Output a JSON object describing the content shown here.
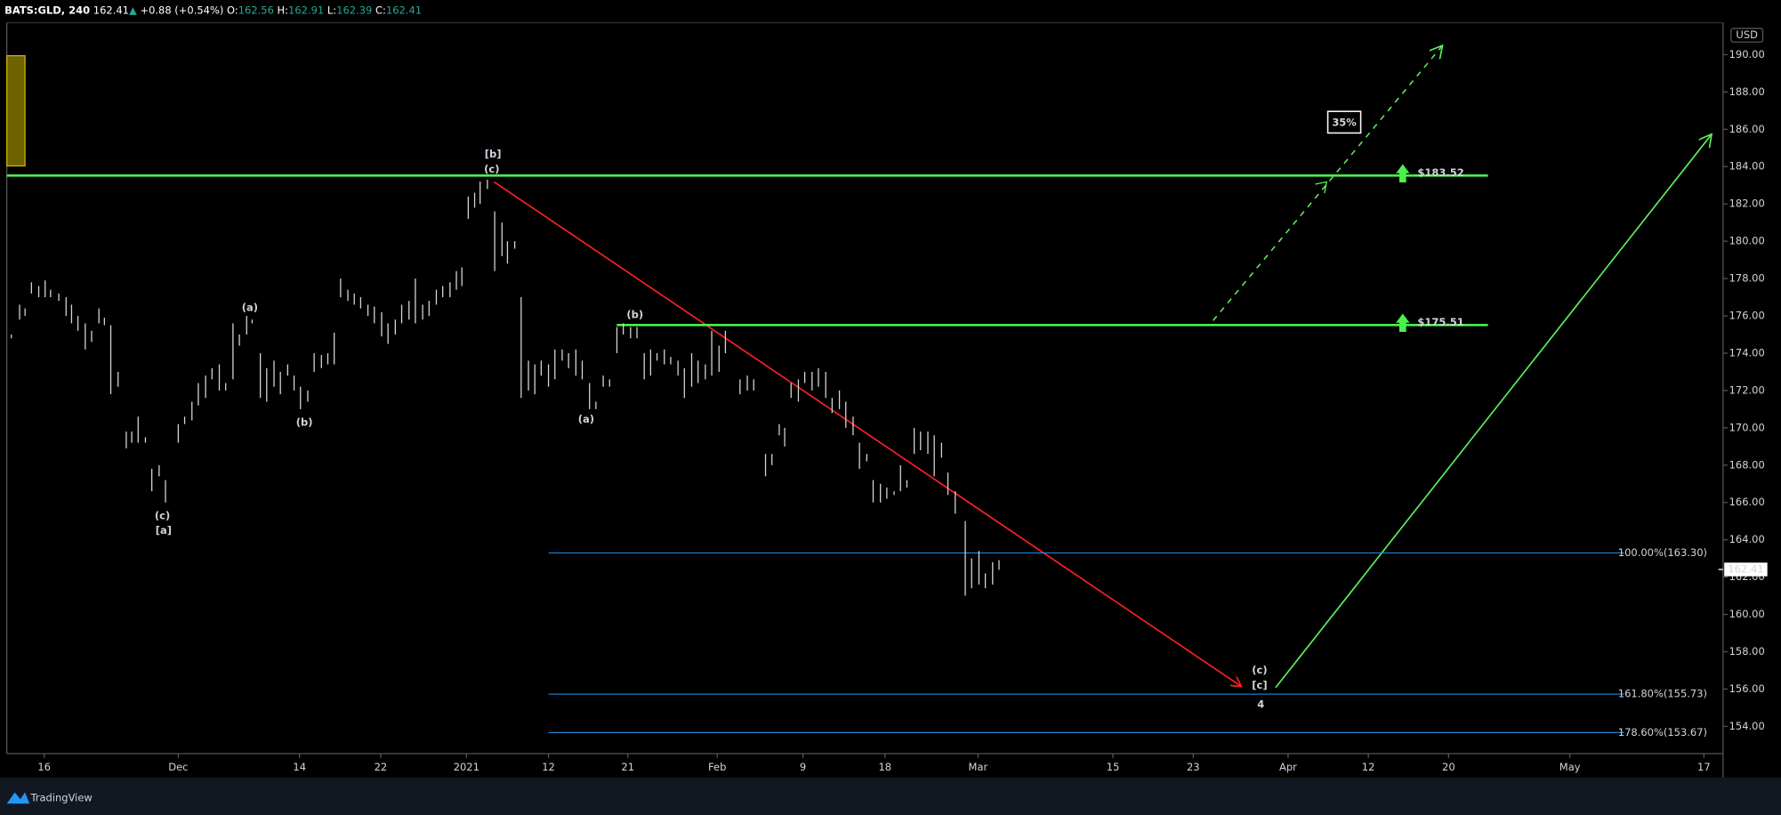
{
  "header": {
    "symbol": "BATS:GLD, 240",
    "price": "162.41",
    "arrow": "▲",
    "change": "+0.88 (+0.54%)",
    "ohlc": [
      {
        "label": "O:",
        "value": "162.56"
      },
      {
        "label": "H:",
        "value": "162.91"
      },
      {
        "label": "L:",
        "value": "162.39"
      },
      {
        "label": "C:",
        "value": "162.41"
      }
    ]
  },
  "footer": {
    "brand": "TradingView"
  },
  "chart_data": {
    "type": "ohlc",
    "currency": "USD",
    "last_price": 162.41,
    "xlim": [
      -4.1,
      184.1
    ],
    "ylim": [
      152.54,
      191.71
    ],
    "xticks": [
      {
        "value": 0,
        "label": "16"
      },
      {
        "value": 14.7,
        "label": "Dec"
      },
      {
        "value": 28,
        "label": "14"
      },
      {
        "value": 36.9,
        "label": "22"
      },
      {
        "value": 46.3,
        "label": "2021"
      },
      {
        "value": 55.3,
        "label": "12"
      },
      {
        "value": 64.0,
        "label": "21"
      },
      {
        "value": 73.8,
        "label": "Feb"
      },
      {
        "value": 83.2,
        "label": "9"
      },
      {
        "value": 92.2,
        "label": "18"
      },
      {
        "value": 102.4,
        "label": "Mar"
      },
      {
        "value": 117.2,
        "label": "15"
      },
      {
        "value": 126.0,
        "label": "23"
      },
      {
        "value": 136.4,
        "label": "Apr"
      },
      {
        "value": 145.2,
        "label": "12"
      },
      {
        "value": 154.0,
        "label": "20"
      },
      {
        "value": 167.3,
        "label": "May"
      },
      {
        "value": 182.0,
        "label": "17"
      }
    ],
    "yticks": [
      {
        "value": 154,
        "label": "154.00"
      },
      {
        "value": 156,
        "label": "156.00"
      },
      {
        "value": 158,
        "label": "158.00"
      },
      {
        "value": 160,
        "label": "160.00"
      },
      {
        "value": 162,
        "label": "162.00"
      },
      {
        "value": 164,
        "label": "164.00"
      },
      {
        "value": 166,
        "label": "166.00"
      },
      {
        "value": 168,
        "label": "168.00"
      },
      {
        "value": 170,
        "label": "170.00"
      },
      {
        "value": 172,
        "label": "172.00"
      },
      {
        "value": 174,
        "label": "174.00"
      },
      {
        "value": 176,
        "label": "176.00"
      },
      {
        "value": 178,
        "label": "178.00"
      },
      {
        "value": 180,
        "label": "180.00"
      },
      {
        "value": 182,
        "label": "182.00"
      },
      {
        "value": 184,
        "label": "184.00"
      },
      {
        "value": 186,
        "label": "186.00"
      },
      {
        "value": 188,
        "label": "188.00"
      },
      {
        "value": 190,
        "label": "190.00"
      }
    ],
    "bars": {
      "color": "#d6d6d6",
      "x": [
        -3.6,
        -2.7,
        -2.1,
        -1.4,
        -0.6,
        0.1,
        0.7,
        1.6,
        2.4,
        3.0,
        3.7,
        4.5,
        5.2,
        6.0,
        6.6,
        7.3,
        8.1,
        9.0,
        9.6,
        10.3,
        11.1,
        11.8,
        12.6,
        13.3,
        14.7,
        15.4,
        16.2,
        16.9,
        17.7,
        18.4,
        19.2,
        19.9,
        20.7,
        21.4,
        22.2,
        22.8,
        23.7,
        24.4,
        25.2,
        25.9,
        26.7,
        27.4,
        28.1,
        28.9,
        29.6,
        30.4,
        31.1,
        31.8,
        32.5,
        33.3,
        34.0,
        34.7,
        35.5,
        36.2,
        37.0,
        37.7,
        38.5,
        39.2,
        40.0,
        40.7,
        41.5,
        42.2,
        43.0,
        43.7,
        44.5,
        45.2,
        45.8,
        46.5,
        47.2,
        47.8,
        48.6,
        49.4,
        50.2,
        50.8,
        51.6,
        52.3,
        53.1,
        53.8,
        54.5,
        55.3,
        56.0,
        56.8,
        57.5,
        58.3,
        59.0,
        59.8,
        60.5,
        61.3,
        62.0,
        62.8,
        63.5,
        64.3,
        65.0,
        65.8,
        66.5,
        67.2,
        68.0,
        68.7,
        69.5,
        70.2,
        71.0,
        71.7,
        72.5,
        73.2,
        74.0,
        74.7,
        76.3,
        77.1,
        77.8,
        79.1,
        79.8,
        80.6,
        81.2,
        81.9,
        82.7,
        83.4,
        84.2,
        84.9,
        85.7,
        86.4,
        87.2,
        87.9,
        88.7,
        89.4,
        90.2,
        90.9,
        91.7,
        92.4,
        93.2,
        93.9,
        94.6,
        95.4,
        96.1,
        96.9,
        97.6,
        98.4,
        99.1,
        99.9,
        101.0,
        101.7,
        102.5,
        103.2,
        104.0,
        104.7
      ],
      "high": [
        175.0,
        176.6,
        176.4,
        177.8,
        177.6,
        177.9,
        177.4,
        177.2,
        177.0,
        176.6,
        176.0,
        175.6,
        175.2,
        176.4,
        175.9,
        175.5,
        173.0,
        169.8,
        169.8,
        170.6,
        169.5,
        167.8,
        168.0,
        167.2,
        170.2,
        170.6,
        171.4,
        172.4,
        172.8,
        173.2,
        173.4,
        172.4,
        175.6,
        175.0,
        176.0,
        175.8,
        174.0,
        173.2,
        173.6,
        173.0,
        173.4,
        172.8,
        172.2,
        172.0,
        174.0,
        173.9,
        174.0,
        175.1,
        178.0,
        177.4,
        177.2,
        177.0,
        176.6,
        176.5,
        176.2,
        175.6,
        175.8,
        176.6,
        176.8,
        178.0,
        176.6,
        176.8,
        177.4,
        177.6,
        177.8,
        178.4,
        178.6,
        182.4,
        182.6,
        183.2,
        183.3,
        181.6,
        181.0,
        180.0,
        180.0,
        177.0,
        173.6,
        173.4,
        173.6,
        173.4,
        174.2,
        174.2,
        174.0,
        174.2,
        173.6,
        172.4,
        171.4,
        172.8,
        172.6,
        175.4,
        175.6,
        175.4,
        175.4,
        174.0,
        174.2,
        174.0,
        174.2,
        173.8,
        173.6,
        173.2,
        174.0,
        173.6,
        173.4,
        175.2,
        174.4,
        175.2,
        172.6,
        172.8,
        172.6,
        168.6,
        168.6,
        170.2,
        170.0,
        172.4,
        172.6,
        173.0,
        173.0,
        173.2,
        173.0,
        171.6,
        172.0,
        171.4,
        170.6,
        169.2,
        168.6,
        167.2,
        167.0,
        166.8,
        166.6,
        168.0,
        167.2,
        170.0,
        169.8,
        169.8,
        169.6,
        169.2,
        167.6,
        166.6,
        165.0,
        163.0,
        163.4,
        162.2,
        162.8,
        162.91
      ],
      "low": [
        174.8,
        175.8,
        176.0,
        177.2,
        177.0,
        177.0,
        177.0,
        176.8,
        176.0,
        175.6,
        175.2,
        174.2,
        174.6,
        175.6,
        175.5,
        171.8,
        172.2,
        168.9,
        169.2,
        169.2,
        169.2,
        166.6,
        167.4,
        166.0,
        169.2,
        170.2,
        170.4,
        171.2,
        171.6,
        172.6,
        172.0,
        172.0,
        172.6,
        174.4,
        175.0,
        175.6,
        171.6,
        171.4,
        172.2,
        171.8,
        172.8,
        172.0,
        171.0,
        171.4,
        173.0,
        173.2,
        173.4,
        173.4,
        177.0,
        176.8,
        176.6,
        176.4,
        176.0,
        175.6,
        174.9,
        174.5,
        175.0,
        175.6,
        175.8,
        175.6,
        175.8,
        176.0,
        176.6,
        177.0,
        177.0,
        177.4,
        177.6,
        181.2,
        181.8,
        182.0,
        182.8,
        178.4,
        179.2,
        178.8,
        179.6,
        171.6,
        172.0,
        171.8,
        172.8,
        172.2,
        172.6,
        173.6,
        173.2,
        172.8,
        172.6,
        171.0,
        171.0,
        172.2,
        172.2,
        174.0,
        175.0,
        174.8,
        174.8,
        172.6,
        172.8,
        173.6,
        173.4,
        173.4,
        172.8,
        171.6,
        172.2,
        172.4,
        172.6,
        172.8,
        173.0,
        174.0,
        171.8,
        172.0,
        172.0,
        167.4,
        168.0,
        169.6,
        169.0,
        171.6,
        171.4,
        172.4,
        172.0,
        172.2,
        171.6,
        170.8,
        171.0,
        170.0,
        169.6,
        167.8,
        168.2,
        166.0,
        166.0,
        166.2,
        166.4,
        166.6,
        166.8,
        168.6,
        168.8,
        168.6,
        167.4,
        168.4,
        166.4,
        165.4,
        161.0,
        161.4,
        161.6,
        161.4,
        161.6,
        162.39
      ]
    },
    "levels": [
      {
        "label": "$183.52",
        "value": 183.52,
        "color": "#4cf04c"
      },
      {
        "label": "$175.51",
        "value": 175.51,
        "color": "#4cf04c"
      }
    ],
    "fib_levels": {
      "color": "#2196f3",
      "items": [
        {
          "label": "100.00%(163.30)",
          "value": 163.3
        },
        {
          "label": "161.80%(155.73)",
          "value": 155.73
        },
        {
          "label": "178.60%(153.67)",
          "value": 153.67
        }
      ]
    },
    "badge": "35%",
    "wave_labels": [
      {
        "text": "[b]",
        "color": "#e91e63"
      },
      {
        "text": "(c)",
        "color": "#2196f3"
      },
      {
        "text": "(a)",
        "color": "#2196f3"
      },
      {
        "text": "(b)",
        "color": "#2196f3"
      },
      {
        "text": "(c)",
        "color": "#2196f3"
      },
      {
        "text": "[a]",
        "color": "#e91e63"
      },
      {
        "text": "(b)",
        "color": "#2196f3"
      },
      {
        "text": "(a)",
        "color": "#2196f3"
      },
      {
        "text": "(c)",
        "color": "#2196f3"
      },
      {
        "text": "[c]",
        "color": "#e91e63"
      },
      {
        "text": "4",
        "color": "#00bcd4"
      }
    ]
  }
}
